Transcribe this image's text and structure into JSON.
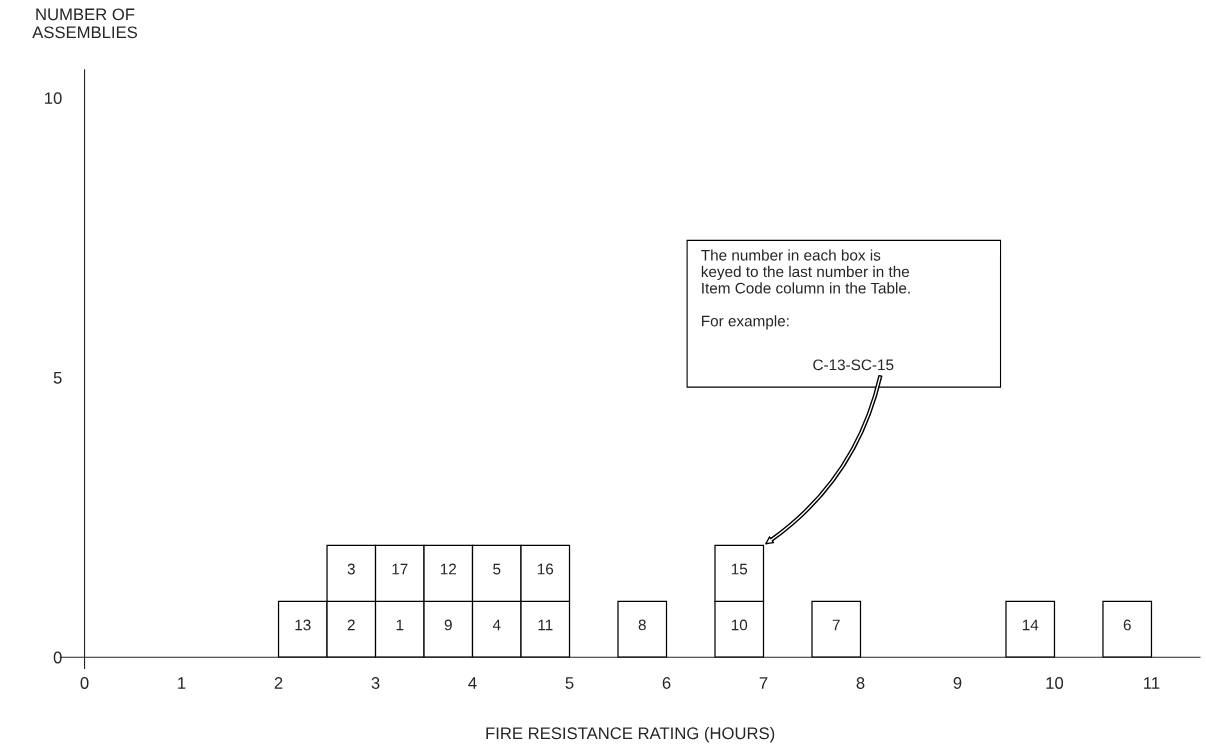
{
  "chart_data": {
    "type": "bar",
    "stacked": true,
    "xlabel": "FIRE RESISTANCE RATING (HOURS)",
    "ylabel": "NUMBER OF\nASSEMBLIES",
    "x": [
      2.25,
      2.75,
      3.25,
      3.75,
      4.25,
      4.75,
      5.75,
      6.75,
      7.75,
      9.75,
      10.75
    ],
    "series": [
      {
        "color": "#ffffff",
        "values": [
          1,
          1,
          1,
          1,
          1,
          1,
          1,
          1,
          1,
          1,
          1
        ]
      },
      {
        "color": "#ffffff",
        "values": [
          null,
          1,
          1,
          1,
          1,
          1,
          null,
          1,
          null,
          null,
          null
        ]
      }
    ],
    "xlim": [
      -0.25,
      11.5
    ],
    "ylim": [
      -0.2,
      10.5
    ],
    "xticks": [
      0,
      1,
      2,
      3,
      4,
      5,
      6,
      7,
      8,
      9,
      10,
      11
    ],
    "yticks": [
      0,
      5,
      10
    ],
    "grid": false,
    "legend": false,
    "annotations": [
      "The number in each box is\nkeyed to the last number in the\nItem Code column in the Table.\n\nFor example:",
      "C-13-SC-15",
      {
        "text": "13",
        "x": 2.25,
        "y": 1
      },
      {
        "text": "2",
        "x": 2.75,
        "y": 1
      },
      {
        "text": "3",
        "x": 2.75,
        "y": 2
      },
      {
        "text": "1",
        "x": 3.25,
        "y": 1
      },
      {
        "text": "17",
        "x": 3.25,
        "y": 2
      },
      {
        "text": "9",
        "x": 3.75,
        "y": 1
      },
      {
        "text": "12",
        "x": 3.75,
        "y": 2
      },
      {
        "text": "4",
        "x": 4.25,
        "y": 1
      },
      {
        "text": "5",
        "x": 4.25,
        "y": 2
      },
      {
        "text": "11",
        "x": 4.75,
        "y": 1
      },
      {
        "text": "16",
        "x": 4.75,
        "y": 2
      },
      {
        "text": "8",
        "x": 5.75,
        "y": 1
      },
      {
        "text": "10",
        "x": 6.75,
        "y": 1
      },
      {
        "text": "15",
        "x": 6.75,
        "y": 2
      },
      {
        "text": "7",
        "x": 7.75,
        "y": 1
      },
      {
        "text": "14",
        "x": 9.75,
        "y": 1
      },
      {
        "text": "6",
        "x": 10.75,
        "y": 1
      }
    ]
  }
}
